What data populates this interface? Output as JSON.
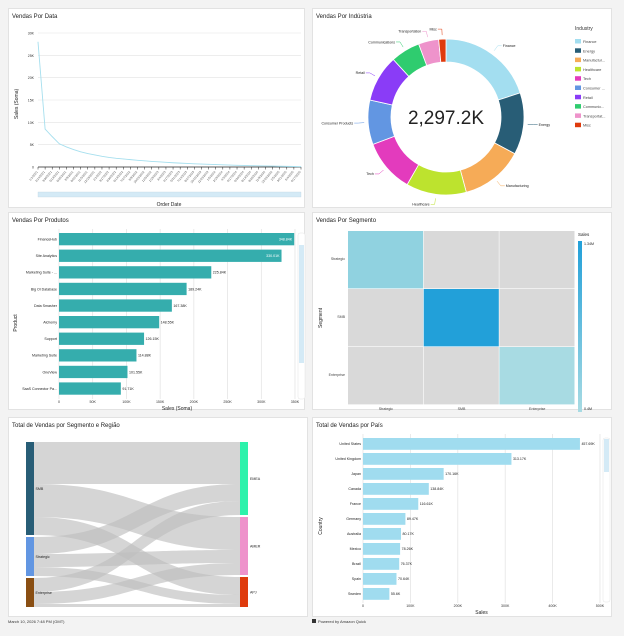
{
  "footer": {
    "timestamp": "March 10, 2026 7:48 PM (GMT)",
    "powered": "Powered by Amazon Quick"
  },
  "colors": {
    "line": "#a6dfee",
    "teal": "#35adad",
    "country_bar": "#a0dcef",
    "heat_low": "#a8dbe3",
    "heat_high": "#22a0d9",
    "cell_empty": "#d9d9d9",
    "flow": "#bfbfbf"
  },
  "chart_data": [
    {
      "id": "line",
      "type": "line",
      "title": "Vendas Por Data",
      "xlabel": "Order Date",
      "ylabel": "Sales (Soma)",
      "yticks": [
        "0",
        "5K",
        "10K",
        "15K",
        "20K",
        "25K",
        "30K"
      ],
      "ylim": [
        0,
        30000
      ],
      "grid": true,
      "x": [
        "1/1/2021",
        "2/14/2021",
        "3/30/2021",
        "5/13/2021",
        "6/26/2021",
        "8/9/2021",
        "9/22/2021",
        "11/5/2021",
        "12/19/2021",
        "2/1/2022",
        "3/17/2022",
        "4/30/2022",
        "6/13/2022",
        "7/27/2022",
        "9/9/2022",
        "10/23/2022",
        "12/6/2022",
        "1/19/2023",
        "3/4/2023",
        "4/17/2023",
        "5/31/2023",
        "7/14/2023",
        "8/27/2023",
        "10/10/2023",
        "11/23/2023",
        "1/6/2024",
        "2/19/2024",
        "4/3/2024",
        "5/17/2024",
        "6/30/2024",
        "8/13/2024",
        "9/26/2024",
        "11/9/2024",
        "12/23/2024",
        "2/5/2025",
        "3/21/2025",
        "5/4/2025",
        "6/17/2025"
      ],
      "values": [
        28000,
        8500,
        6800,
        5200,
        4500,
        3900,
        3400,
        3000,
        2700,
        2400,
        2150,
        1950,
        1800,
        1650,
        1500,
        1380,
        1250,
        1150,
        1050,
        950,
        870,
        800,
        720,
        660,
        600,
        540,
        480,
        430,
        380,
        340,
        300,
        260,
        230,
        200,
        170,
        140,
        110,
        80
      ]
    },
    {
      "id": "industry",
      "type": "pie",
      "title": "Vendas Por Indústria",
      "center_label": "2,297.2K",
      "legend_title": "Industry",
      "legend_position": "right",
      "slices": [
        {
          "label": "Finance",
          "legend": "Finance",
          "share": 0.2,
          "color": "#a3def0"
        },
        {
          "label": "Energy",
          "legend": "Energy",
          "share": 0.128,
          "color": "#285d76"
        },
        {
          "label": "Manufacturing",
          "legend": "Manufactur...",
          "share": 0.13,
          "color": "#f6ab57"
        },
        {
          "label": "Healthcare",
          "legend": "Healthcare",
          "share": 0.125,
          "color": "#bde32e"
        },
        {
          "label": "Tech",
          "legend": "Tech",
          "share": 0.11,
          "color": "#e33bbd"
        },
        {
          "label": "Consumer Products",
          "legend": "Consumer ...",
          "share": 0.092,
          "color": "#6296e2"
        },
        {
          "label": "Retail",
          "legend": "Retail",
          "share": 0.097,
          "color": "#8a3cf7"
        },
        {
          "label": "Communications",
          "legend": "Communic...",
          "share": 0.061,
          "color": "#2fcc6f"
        },
        {
          "label": "Transportation",
          "legend": "Transportat...",
          "share": 0.042,
          "color": "#ee93cb"
        },
        {
          "label": "Misc",
          "legend": "Misc",
          "share": 0.015,
          "color": "#df3b0d"
        }
      ]
    },
    {
      "id": "products",
      "type": "bar",
      "orientation": "horizontal",
      "title": "Vendas Por Produtos",
      "xlabel": "Sales (Soma)",
      "ylabel": "Product",
      "xlim": [
        0,
        350000
      ],
      "xticks": [
        "0",
        "50K",
        "100K",
        "150K",
        "200K",
        "250K",
        "300K",
        "350K"
      ],
      "categories": [
        "FinanceHub",
        "Site Analytics",
        "Marketing Suite - ...",
        "Big Ol Database",
        "Data Smasher",
        "Alchemy",
        "Support",
        "Marketing Suite",
        "OneView",
        "SaaS Connector Pa..."
      ],
      "values": [
        348840,
        330010,
        225840,
        189240,
        167380,
        148550,
        126150,
        114880,
        101550,
        91710
      ],
      "labels": [
        "348.84K",
        "330.01K",
        "225.84K",
        "189.24K",
        "167.38K",
        "148.55K",
        "126.15K",
        "114.88K",
        "101.55K",
        "91.71K"
      ]
    },
    {
      "id": "segment",
      "type": "heatmap",
      "title": "Vendas Por Segmento",
      "ylabel": "Segment",
      "legend_title": "Sales",
      "legend_max": "1.34M",
      "legend_min": "0.4M",
      "rows": [
        "Strategic",
        "SMB",
        "Enterprise"
      ],
      "cols": [
        "Strategic",
        "SMB",
        "Enterprise"
      ],
      "values": [
        [
          560000,
          null,
          null
        ],
        [
          null,
          1340000,
          null
        ],
        [
          null,
          null,
          400000
        ]
      ]
    },
    {
      "id": "sankey",
      "type": "sankey",
      "title": "Total de Vendas por Segmento e Região",
      "sources": [
        {
          "label": "SMB",
          "color": "#285d76"
        },
        {
          "label": "Strategic",
          "color": "#6296e2"
        },
        {
          "label": "Enterprise",
          "color": "#8a4f13"
        }
      ],
      "targets": [
        {
          "label": "EMEA",
          "color": "#2cf2ab"
        },
        {
          "label": "AMER",
          "color": "#ee93cb"
        },
        {
          "label": "APJ",
          "color": "#df3b0d"
        }
      ],
      "links": [
        [
          0,
          0,
          42
        ],
        [
          0,
          1,
          33
        ],
        [
          0,
          2,
          18
        ],
        [
          1,
          0,
          17
        ],
        [
          1,
          1,
          13
        ],
        [
          1,
          2,
          9
        ],
        [
          2,
          0,
          14
        ],
        [
          2,
          1,
          12
        ],
        [
          2,
          2,
          3
        ]
      ]
    },
    {
      "id": "country",
      "type": "bar",
      "orientation": "horizontal",
      "title": "Total de Vendas por País",
      "xlabel": "Sales",
      "ylabel": "Country",
      "xlim": [
        0,
        500000
      ],
      "xticks": [
        "0",
        "100K",
        "200K",
        "300K",
        "400K",
        "500K"
      ],
      "categories": [
        "United States",
        "United Kingdom",
        "Japan",
        "Canada",
        "France",
        "Germany",
        "Australia",
        "Mexico",
        "Brazil",
        "Spain",
        "Sweden"
      ],
      "values": [
        457690,
        313170,
        170160,
        138840,
        116610,
        89470,
        80170,
        78260,
        76370,
        70640,
        55600
      ],
      "labels": [
        "457.69K",
        "313.17K",
        "170.16K",
        "138.84K",
        "116.61K",
        "89.47K",
        "80.17K",
        "78.26K",
        "76.37K",
        "70.64K",
        "55.6K"
      ]
    }
  ]
}
